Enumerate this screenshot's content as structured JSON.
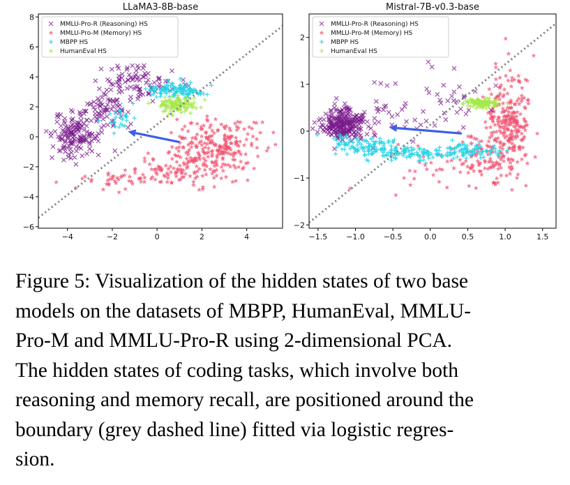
{
  "chart_data": [
    {
      "type": "scatter",
      "title": "LLaMA3-8B-base",
      "xlabel": "",
      "ylabel": "",
      "xlim": [
        -5.3,
        5.6
      ],
      "ylim": [
        -6.1,
        8.2
      ],
      "xticks": [
        -4,
        -2,
        0,
        2,
        4
      ],
      "yticks": [
        -6,
        -4,
        -2,
        0,
        2,
        4,
        6,
        8
      ],
      "tick_labels_x": [
        "−4",
        "−2",
        "0",
        "2",
        "4"
      ],
      "tick_labels_y": [
        "−6",
        "−4",
        "−2",
        "0",
        "2",
        "4",
        "6",
        "8"
      ],
      "legend_position": "top-left",
      "series": [
        {
          "name": "MMLU-Pro-R (Reasoning) HS",
          "marker": "x",
          "color": "#7a1a8c",
          "clusters": [
            {
              "cx": -3.6,
              "cy": 0.1,
              "sx": 0.55,
              "sy": 0.75,
              "n": 150
            },
            {
              "cx": -2.4,
              "cy": 1.8,
              "sx": 0.6,
              "sy": 0.6,
              "n": 70
            },
            {
              "cx": -0.8,
              "cy": 3.6,
              "sx": 0.9,
              "sy": 0.55,
              "n": 90
            }
          ]
        },
        {
          "name": "MMLU-Pro-M (Memory) HS",
          "marker": "star",
          "color": "#f0506e",
          "clusters": [
            {
              "cx": 2.6,
              "cy": -0.7,
              "sx": 1.0,
              "sy": 1.0,
              "n": 230
            },
            {
              "cx": 1.2,
              "cy": -2.1,
              "sx": 1.0,
              "sy": 0.6,
              "n": 100
            },
            {
              "cx": -1.5,
              "cy": -2.8,
              "sx": 1.0,
              "sy": 0.4,
              "n": 40
            }
          ]
        },
        {
          "name": "MBPP HS",
          "marker": "plus",
          "color": "#22d3e6",
          "clusters": [
            {
              "cx": 1.0,
              "cy": 3.1,
              "sx": 0.7,
              "sy": 0.25,
              "n": 110
            },
            {
              "cx": -1.6,
              "cy": 1.3,
              "sx": 0.35,
              "sy": 0.5,
              "n": 25
            }
          ]
        },
        {
          "name": "HumanEval HS",
          "marker": "plus",
          "color": "#a6e84a",
          "clusters": [
            {
              "cx": 0.9,
              "cy": 2.1,
              "sx": 0.45,
              "sy": 0.28,
              "n": 110
            }
          ]
        }
      ],
      "boundary": {
        "x1": -5.3,
        "y1": -5.4,
        "x2": 5.6,
        "y2": 7.4
      },
      "arrow": {
        "x1": 1.0,
        "y1": -0.35,
        "x2": -1.3,
        "y2": 0.35
      },
      "seed": 7
    },
    {
      "type": "scatter",
      "title": "Mistral-7B-v0.3-base",
      "xlabel": "",
      "ylabel": "",
      "xlim": [
        -1.62,
        1.68
      ],
      "ylim": [
        -2.07,
        2.5
      ],
      "xticks": [
        -1.5,
        -1.0,
        -0.5,
        0.0,
        0.5,
        1.0,
        1.5
      ],
      "yticks": [
        -2,
        -1,
        0,
        1,
        2
      ],
      "tick_labels_x": [
        "−1.5",
        "−1.0",
        "−0.5",
        "0.0",
        "0.5",
        "1.0",
        "1.5"
      ],
      "tick_labels_y": [
        "−2",
        "−1",
        "0",
        "1",
        "2"
      ],
      "legend_position": "top-left",
      "series": [
        {
          "name": "MMLU-Pro-R (Reasoning) HS",
          "marker": "x",
          "color": "#7a1a8c",
          "clusters": [
            {
              "cx": -1.15,
              "cy": 0.15,
              "sx": 0.16,
              "sy": 0.16,
              "n": 250
            },
            {
              "cx": -0.5,
              "cy": 0.35,
              "sx": 0.35,
              "sy": 0.3,
              "n": 40
            },
            {
              "cx": 0.4,
              "cy": 0.7,
              "sx": 0.3,
              "sy": 0.35,
              "n": 25
            }
          ]
        },
        {
          "name": "MMLU-Pro-M (Memory) HS",
          "marker": "star",
          "color": "#f0506e",
          "clusters": [
            {
              "cx": 1.05,
              "cy": 0.15,
              "sx": 0.15,
              "sy": 0.55,
              "n": 250
            },
            {
              "cx": 0.75,
              "cy": -0.5,
              "sx": 0.18,
              "sy": 0.3,
              "n": 80
            },
            {
              "cx": 0.1,
              "cy": -0.7,
              "sx": 0.5,
              "sy": 0.25,
              "n": 40
            }
          ]
        },
        {
          "name": "MBPP HS",
          "marker": "plus",
          "color": "#22d3e6",
          "clusters": [
            {
              "cx": -0.9,
              "cy": -0.3,
              "sx": 0.25,
              "sy": 0.1,
              "n": 90
            },
            {
              "cx": -0.2,
              "cy": -0.48,
              "sx": 0.3,
              "sy": 0.08,
              "n": 110
            },
            {
              "cx": 0.55,
              "cy": -0.4,
              "sx": 0.2,
              "sy": 0.08,
              "n": 70
            }
          ]
        },
        {
          "name": "HumanEval HS",
          "marker": "plus",
          "color": "#a6e84a",
          "clusters": [
            {
              "cx": 0.7,
              "cy": 0.6,
              "sx": 0.12,
              "sy": 0.05,
              "n": 110
            }
          ]
        }
      ],
      "boundary": {
        "x1": -1.62,
        "y1": -1.95,
        "x2": 1.68,
        "y2": 2.3
      },
      "arrow": {
        "x1": 0.42,
        "y1": -0.05,
        "x2": -0.55,
        "y2": 0.08
      },
      "seed": 13
    }
  ],
  "caption": {
    "lines": [
      "Figure 5: Visualization of the hidden states of two base",
      "models on the datasets of MBPP, HumanEval, MMLU-",
      "Pro-M and MMLU-Pro-R using 2-dimensional PCA.",
      "The hidden states of coding tasks, which involve both",
      "reasoning and memory recall, are positioned around the",
      "boundary (grey dashed line) fitted via logistic regres-",
      "sion."
    ]
  }
}
